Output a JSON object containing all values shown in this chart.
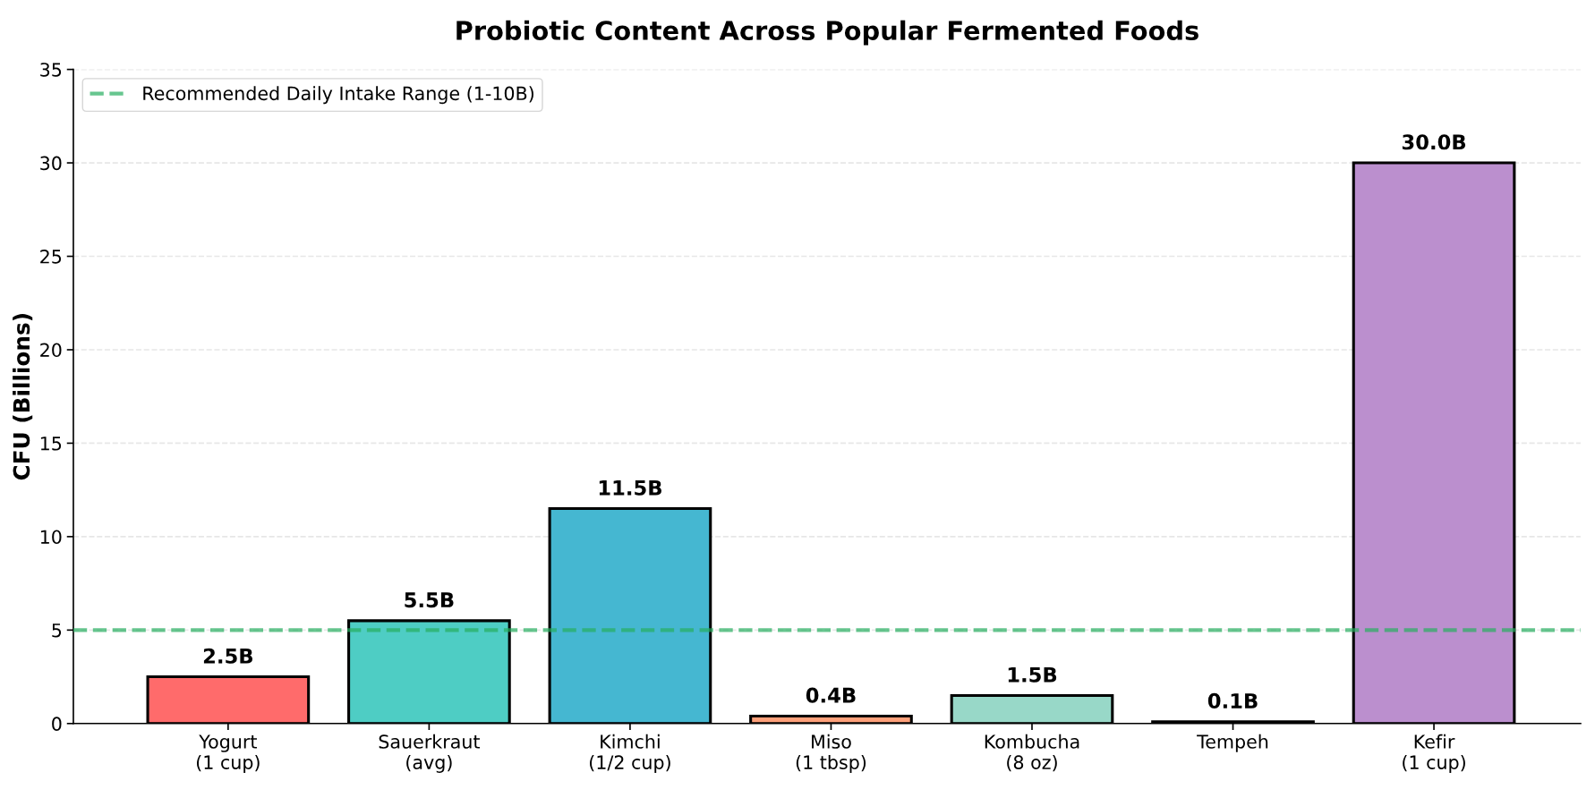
{
  "chart_data": {
    "type": "bar",
    "title": "Probiotic Content Across Popular Fermented Foods",
    "ylabel": "CFU (Billions)",
    "categories": [
      "Yogurt\n(1 cup)",
      "Sauerkraut\n(avg)",
      "Kimchi\n(1/2 cup)",
      "Miso\n(1 tbsp)",
      "Kombucha\n(8 oz)",
      "Tempeh",
      "Kefir\n(1 cup)"
    ],
    "values": [
      2.5,
      5.5,
      11.5,
      0.4,
      1.5,
      0.1,
      30.0
    ],
    "colors": [
      "#ff6b6b",
      "#4ecdc4",
      "#45b7d1",
      "#ffa07a",
      "#98d8c8",
      "#f7dc6f",
      "#bb8fce"
    ],
    "value_labels": [
      "2.5B",
      "5.5B",
      "11.5B",
      "0.4B",
      "1.5B",
      "0.1B",
      "30.0B"
    ],
    "ylim": [
      0,
      35
    ],
    "yticks": [
      0,
      5,
      10,
      15,
      20,
      25,
      30,
      35
    ],
    "ref_lines": [
      {
        "axis": "y",
        "value": 5,
        "label": "Recommended Daily Intake Range (1-10B)",
        "color": "#27ae60",
        "line_style": "dashed"
      }
    ],
    "grid": "y",
    "legend": "top left"
  }
}
